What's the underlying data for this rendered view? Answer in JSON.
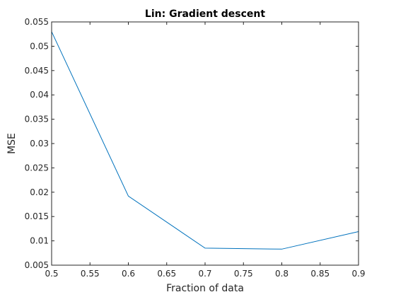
{
  "chart_data": {
    "type": "line",
    "title": "Lin: Gradient descent",
    "xlabel": "Fraction of data",
    "ylabel": "MSE",
    "xlim": [
      0.5,
      0.9
    ],
    "ylim": [
      0.005,
      0.055
    ],
    "xticks": [
      "0.5",
      "0.55",
      "0.6",
      "0.65",
      "0.7",
      "0.75",
      "0.8",
      "0.85",
      "0.9"
    ],
    "yticks": [
      "0.005",
      "0.01",
      "0.015",
      "0.02",
      "0.025",
      "0.03",
      "0.035",
      "0.04",
      "0.045",
      "0.05",
      "0.055"
    ],
    "grid": false,
    "series": [
      {
        "x": [
          0.5,
          0.6,
          0.7,
          0.8,
          0.9
        ],
        "y": [
          0.053,
          0.0192,
          0.0085,
          0.0083,
          0.0119
        ],
        "color": "#0072BD"
      }
    ]
  }
}
